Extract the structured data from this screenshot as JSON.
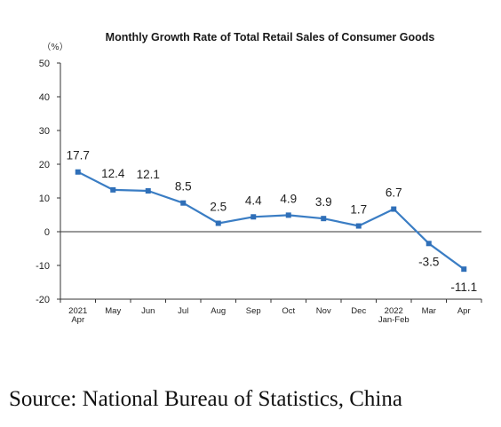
{
  "chart_data": {
    "type": "line",
    "title": "Monthly Growth Rate of Total Retail Sales of Consumer Goods",
    "unit_label": "（%）",
    "categories": [
      [
        "2021",
        "Apr"
      ],
      [
        "May"
      ],
      [
        "Jun"
      ],
      [
        "Jul"
      ],
      [
        "Aug"
      ],
      [
        "Sep"
      ],
      [
        "Oct"
      ],
      [
        "Nov"
      ],
      [
        "Dec"
      ],
      [
        "2022",
        "Jan-Feb"
      ],
      [
        "Mar"
      ],
      [
        "Apr"
      ]
    ],
    "values": [
      17.7,
      12.4,
      12.1,
      8.5,
      2.5,
      4.4,
      4.9,
      3.9,
      1.7,
      6.7,
      -3.5,
      -11.1
    ],
    "ylim": [
      -20,
      50
    ],
    "yticks": [
      50,
      40,
      30,
      20,
      10,
      0,
      -10,
      -20
    ],
    "grid": false,
    "legend": "none",
    "line_color": "#3a7dc4",
    "marker_color": "#2f6fb8"
  },
  "source_text": "Source: National Bureau of Statistics, China"
}
